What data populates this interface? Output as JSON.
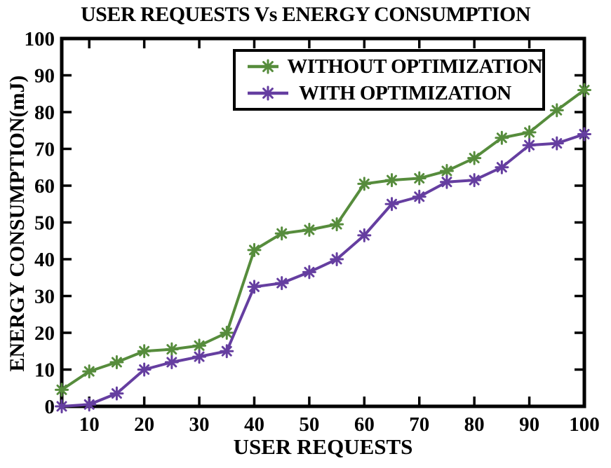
{
  "chart_data": {
    "type": "line",
    "title": "USER REQUESTS Vs ENERGY CONSUMPTION",
    "xlabel": "USER REQUESTS",
    "ylabel": "ENERGY CONSUMPTION(mJ)",
    "xlim": [
      5,
      100
    ],
    "ylim": [
      0,
      100
    ],
    "xticks": [
      10,
      20,
      30,
      40,
      50,
      60,
      70,
      80,
      90,
      100
    ],
    "yticks": [
      0,
      10,
      20,
      30,
      40,
      50,
      60,
      70,
      80,
      90,
      100
    ],
    "grid": false,
    "legend_position": "top-center-inside",
    "x": [
      5,
      10,
      15,
      20,
      25,
      30,
      35,
      40,
      45,
      50,
      55,
      60,
      65,
      70,
      75,
      80,
      85,
      90,
      95,
      100
    ],
    "series": [
      {
        "name": "WITHOUT OPTIMIZATION",
        "color": "#568C3C",
        "marker": "asterisk",
        "values": [
          4.5,
          9.5,
          12,
          15,
          15.5,
          16.5,
          20,
          42.5,
          47,
          48,
          49.5,
          60.5,
          61.5,
          62,
          64,
          67.5,
          73,
          74.5,
          80.5,
          86
        ]
      },
      {
        "name": "WITH OPTIMIZATION",
        "color": "#653EA0",
        "marker": "asterisk",
        "values": [
          0,
          0.5,
          3.5,
          10,
          12,
          13.5,
          15,
          32.5,
          33.5,
          36.5,
          40,
          46.5,
          55,
          57,
          61,
          61.5,
          65,
          71,
          71.5,
          74
        ]
      }
    ],
    "colors": {
      "axis": "#000000",
      "background": "#ffffff"
    }
  }
}
